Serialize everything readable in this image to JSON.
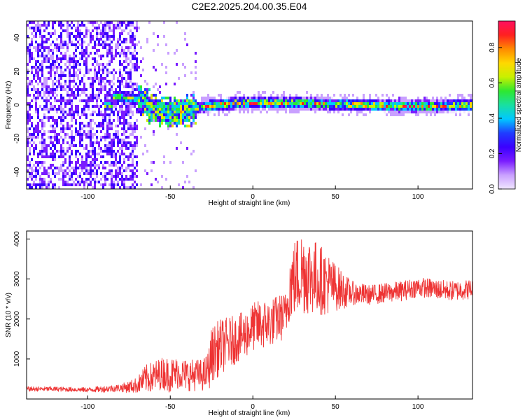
{
  "figure": {
    "title": "C2E2.2025.204.00.35.E04"
  },
  "chart_data": [
    {
      "type": "heatmap",
      "title": "C2E2.2025.204.00.35.E04",
      "xlabel": "Height of straight line (km)",
      "ylabel": "Frequency (Hz)",
      "xlim": [
        -137,
        133
      ],
      "ylim": [
        -50,
        50
      ],
      "xticks": [
        -100,
        -50,
        0,
        50,
        100
      ],
      "xtick_labels": [
        "-100",
        "-50",
        "0",
        "50",
        "100"
      ],
      "yticks": [
        -40,
        -20,
        0,
        20,
        40
      ],
      "ytick_labels": [
        "-40",
        "-20",
        "0",
        "20",
        "40"
      ],
      "colorbar": {
        "label": "Normalized spectral amplitude",
        "range": [
          0,
          0.95
        ],
        "ticks": [
          0.0,
          0.2,
          0.4,
          0.6,
          0.8
        ],
        "tick_labels": [
          "0.0",
          "0.2",
          "0.4",
          "0.6",
          "0.8"
        ],
        "colormap": [
          "#f0e6ff",
          "#c9a0ff",
          "#7a1cff",
          "#3a00ff",
          "#1f3dff",
          "#00c8ff",
          "#19e0a0",
          "#2ee830",
          "#c8f000",
          "#ffd800",
          "#ff8a00",
          "#ff2020",
          "#ff1060"
        ]
      },
      "features": {
        "noise_region_x": [
          -137,
          -70
        ],
        "transition_x": [
          -70,
          -35
        ],
        "signal_band_center_hz": [
          [
            -85,
            6
          ],
          [
            -75,
            5
          ],
          [
            -68,
            3
          ],
          [
            -60,
            -2
          ],
          [
            -50,
            -4
          ],
          [
            -40,
            -3
          ],
          [
            -30,
            0
          ],
          [
            -20,
            1
          ],
          [
            -10,
            2
          ],
          [
            0,
            2
          ],
          [
            10,
            2
          ],
          [
            20,
            2
          ],
          [
            30,
            2
          ],
          [
            40,
            1.5
          ],
          [
            50,
            1
          ],
          [
            60,
            1
          ],
          [
            70,
            0.5
          ],
          [
            80,
            0.5
          ],
          [
            90,
            0
          ],
          [
            100,
            0
          ],
          [
            110,
            0
          ],
          [
            120,
            0.5
          ],
          [
            133,
            0.5
          ]
        ],
        "band_halfwidth_hz": 2.5
      }
    },
    {
      "type": "line",
      "xlabel": "Height of straight line (km)",
      "ylabel": "SNR (10 * v/v)",
      "xlim": [
        -137,
        133
      ],
      "ylim": [
        0,
        4200
      ],
      "xticks": [
        -100,
        -50,
        0,
        50,
        100
      ],
      "xtick_labels": [
        "-100",
        "-50",
        "0",
        "50",
        "100"
      ],
      "yticks": [
        1000,
        2000,
        3000,
        4000
      ],
      "ytick_labels": [
        "1000",
        "2000",
        "3000",
        "4000"
      ],
      "color": "#ee3333",
      "series": [
        {
          "x": [
            -137,
            -120,
            -100,
            -90,
            -80,
            -75,
            -70,
            -65,
            -60,
            -55,
            -50,
            -45,
            -40,
            -35,
            -30,
            -27,
            -25,
            -20,
            -15,
            -10,
            -5,
            0,
            5,
            10,
            15,
            20,
            22,
            25,
            30,
            35,
            40,
            45,
            50,
            55,
            60,
            70,
            80,
            90,
            100,
            110,
            120,
            133
          ],
          "y": [
            250,
            250,
            230,
            250,
            280,
            300,
            350,
            500,
            550,
            650,
            600,
            650,
            600,
            600,
            600,
            700,
            1100,
            1300,
            1400,
            1500,
            1600,
            1800,
            1850,
            1900,
            2000,
            2100,
            2800,
            3000,
            3200,
            3100,
            3000,
            2900,
            2800,
            2700,
            2650,
            2600,
            2650,
            2700,
            2800,
            2750,
            2700,
            2750
          ],
          "noise_amplitude": [
            60,
            60,
            60,
            80,
            100,
            150,
            200,
            350,
            400,
            400,
            450,
            400,
            400,
            400,
            400,
            500,
            700,
            700,
            650,
            600,
            600,
            600,
            650,
            600,
            600,
            600,
            900,
            1000,
            1100,
            1000,
            900,
            800,
            600,
            450,
            300,
            250,
            250,
            250,
            250,
            250,
            250,
            250
          ]
        }
      ]
    }
  ]
}
